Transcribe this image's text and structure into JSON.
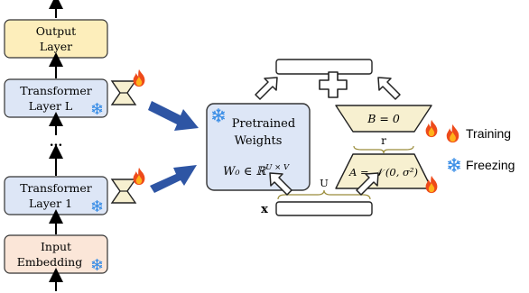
{
  "left_stack": {
    "output_layer": [
      "Output",
      "Layer"
    ],
    "layer_L": [
      "Transformer",
      "Layer L"
    ],
    "ellipsis": "...",
    "layer_1": [
      "Transformer",
      "Layer 1"
    ],
    "input_embedding": [
      "Input",
      "Embedding"
    ]
  },
  "pretrained": {
    "title": [
      "Pretrained",
      "Weights"
    ],
    "formula": "W₀ ∈ ℝ",
    "formula_sup": "U × V"
  },
  "lora": {
    "B_label": "B = 0",
    "A_label": "A = 𝒩 (0, σ²)",
    "r_label": "r",
    "U_label": "U",
    "x_label": "x",
    "plus": "+"
  },
  "legend": {
    "training": "Training",
    "freezing": "Freezing"
  },
  "icons": {
    "training": "flame-icon",
    "freezing": "snowflake-icon"
  },
  "colors": {
    "output_fill": "#fdeebb",
    "transformer_fill": "#dde6f6",
    "input_fill": "#fbe6d8",
    "pretrained_fill": "#dde6f6",
    "trapezoid_fill": "#f7f0d0",
    "blue_arrow": "#2e55a4",
    "snow": "#3b8ee6",
    "flame_outer": "#ee4a1a",
    "flame_inner": "#ffb21a"
  }
}
